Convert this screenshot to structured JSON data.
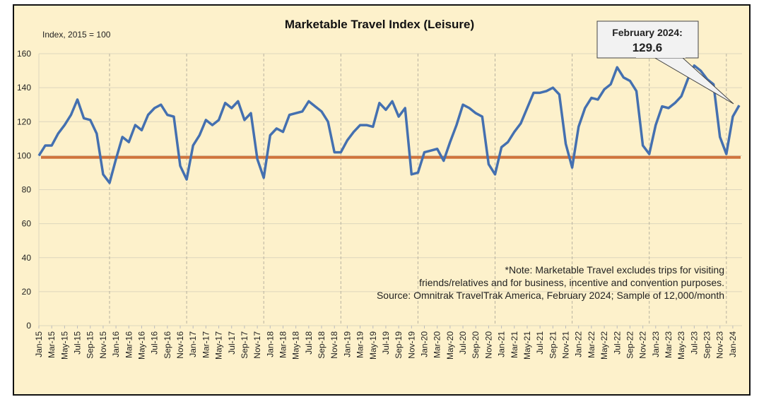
{
  "chart_data": {
    "type": "line",
    "title": "Marketable Travel Index (Leisure)",
    "ylabel": "Index,  2015 = 100",
    "ylim": [
      0,
      160
    ],
    "yticks": [
      "0",
      "20",
      "40",
      "60",
      "80",
      "100",
      "120",
      "140",
      "160"
    ],
    "grid": true,
    "reference_line": {
      "value": 99,
      "color": "#d0743c"
    },
    "series_color": "#4470b0",
    "categories": [
      "Jan-15",
      "Feb-15",
      "Mar-15",
      "Apr-15",
      "May-15",
      "Jun-15",
      "Jul-15",
      "Aug-15",
      "Sep-15",
      "Oct-15",
      "Nov-15",
      "Dec-15",
      "Jan-16",
      "Feb-16",
      "Mar-16",
      "Apr-16",
      "May-16",
      "Jun-16",
      "Jul-16",
      "Aug-16",
      "Sep-16",
      "Oct-16",
      "Nov-16",
      "Dec-16",
      "Jan-17",
      "Feb-17",
      "Mar-17",
      "Apr-17",
      "May-17",
      "Jun-17",
      "Jul-17",
      "Aug-17",
      "Sep-17",
      "Oct-17",
      "Nov-17",
      "Dec-17",
      "Jan-18",
      "Feb-18",
      "Mar-18",
      "Apr-18",
      "May-18",
      "Jun-18",
      "Jul-18",
      "Aug-18",
      "Sep-18",
      "Oct-18",
      "Nov-18",
      "Dec-18",
      "Jan-19",
      "Feb-19",
      "Mar-19",
      "Apr-19",
      "May-19",
      "Jun-19",
      "Jul-19",
      "Aug-19",
      "Sep-19",
      "Oct-19",
      "Nov-19",
      "Dec-19",
      "Jan-20",
      "Feb-20",
      "Mar-20",
      "Apr-20",
      "May-20",
      "Jun-20",
      "Jul-20",
      "Aug-20",
      "Sep-20",
      "Oct-20",
      "Nov-20",
      "Dec-20",
      "Jan-21",
      "Feb-21",
      "Mar-21",
      "Apr-21",
      "May-21",
      "Jun-21",
      "Jul-21",
      "Aug-21",
      "Sep-21",
      "Oct-21",
      "Nov-21",
      "Dec-21",
      "Jan-22",
      "Feb-22",
      "Mar-22",
      "Apr-22",
      "May-22",
      "Jun-22",
      "Jul-22",
      "Aug-22",
      "Sep-22",
      "Oct-22",
      "Nov-22",
      "Dec-22",
      "Jan-23",
      "Feb-23",
      "Mar-23",
      "Apr-23",
      "May-23",
      "Jun-23",
      "Jul-23",
      "Aug-23",
      "Sep-23",
      "Oct-23",
      "Nov-23",
      "Dec-23",
      "Jan-24",
      "Feb-24"
    ],
    "values": [
      100,
      106,
      106,
      113,
      118,
      124,
      133,
      122,
      121,
      113,
      89,
      84,
      98,
      111,
      108,
      118,
      115,
      124,
      128,
      130,
      124,
      123,
      94,
      86,
      106,
      112,
      121,
      118,
      121,
      131,
      128,
      132,
      121,
      125,
      98,
      87,
      112,
      116,
      114,
      124,
      125,
      126,
      132,
      129,
      126,
      120,
      102,
      102,
      109,
      114,
      118,
      118,
      117,
      131,
      127,
      132,
      123,
      128,
      89,
      90,
      102,
      103,
      104,
      97,
      108,
      118,
      130,
      128,
      125,
      123,
      95,
      89,
      105,
      108,
      114,
      119,
      128,
      137,
      137,
      138,
      140,
      136,
      107,
      93,
      117,
      128,
      134,
      133,
      139,
      142,
      152,
      146,
      144,
      138,
      106,
      101,
      118,
      129,
      128,
      131,
      135,
      145,
      153,
      150,
      145,
      142,
      111,
      101,
      123,
      129.6
    ],
    "callout": {
      "line1": "February 2024:",
      "line2": "129.6"
    },
    "note": [
      "*Note: Marketable Travel excludes trips for visiting",
      "friends/relatives and for business, incentive and convention purposes.",
      "Source: Omnitrak TravelTrak America, February 2024; Sample of 12,000/month"
    ]
  }
}
